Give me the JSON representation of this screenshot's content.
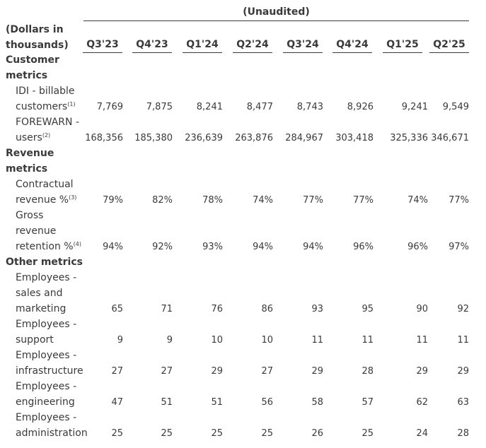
{
  "header": {
    "unaudited": "(Unaudited)",
    "units_line1": "(Dollars in",
    "units_line2": "thousands)",
    "columns": [
      "Q3'23",
      "Q4'23",
      "Q1'24",
      "Q2'24",
      "Q3'24",
      "Q4'24",
      "Q1'25",
      "Q2'25"
    ]
  },
  "sections": {
    "customer": [
      "Customer",
      "metrics"
    ],
    "revenue": [
      "Revenue",
      "metrics"
    ],
    "other": [
      "Other metrics"
    ]
  },
  "rows": [
    {
      "label": [
        "IDI - billable",
        "customers"
      ],
      "note": "(1)",
      "values": [
        "7,769",
        "7,875",
        "8,241",
        "8,477",
        "8,743",
        "8,926",
        "9,241",
        "9,549"
      ]
    },
    {
      "label": [
        "FOREWARN -",
        "users"
      ],
      "note": "(2)",
      "values": [
        "168,356",
        "185,380",
        "236,639",
        "263,876",
        "284,967",
        "303,418",
        "325,336",
        "346,671"
      ]
    },
    {
      "label": [
        "Contractual",
        "revenue %"
      ],
      "note": "(3)",
      "values": [
        "79%",
        "82%",
        "78%",
        "74%",
        "77%",
        "77%",
        "74%",
        "77%"
      ]
    },
    {
      "label": [
        "Gross",
        "revenue",
        "retention %"
      ],
      "note": "(4)",
      "values": [
        "94%",
        "92%",
        "93%",
        "94%",
        "94%",
        "96%",
        "96%",
        "97%"
      ]
    },
    {
      "label": [
        "Employees -",
        "sales and",
        "marketing"
      ],
      "note": "",
      "values": [
        "65",
        "71",
        "76",
        "86",
        "93",
        "95",
        "90",
        "92"
      ]
    },
    {
      "label": [
        "Employees -",
        "support"
      ],
      "note": "",
      "values": [
        "9",
        "9",
        "10",
        "10",
        "11",
        "11",
        "11",
        "11"
      ]
    },
    {
      "label": [
        "Employees -",
        "infrastructure"
      ],
      "note": "",
      "values": [
        "27",
        "27",
        "29",
        "27",
        "29",
        "28",
        "29",
        "29"
      ]
    },
    {
      "label": [
        "Employees -",
        "engineering"
      ],
      "note": "",
      "values": [
        "47",
        "51",
        "51",
        "56",
        "58",
        "57",
        "62",
        "63"
      ]
    },
    {
      "label": [
        "Employees -",
        "administration"
      ],
      "note": "",
      "values": [
        "25",
        "25",
        "25",
        "25",
        "26",
        "25",
        "24",
        "28"
      ]
    }
  ]
}
